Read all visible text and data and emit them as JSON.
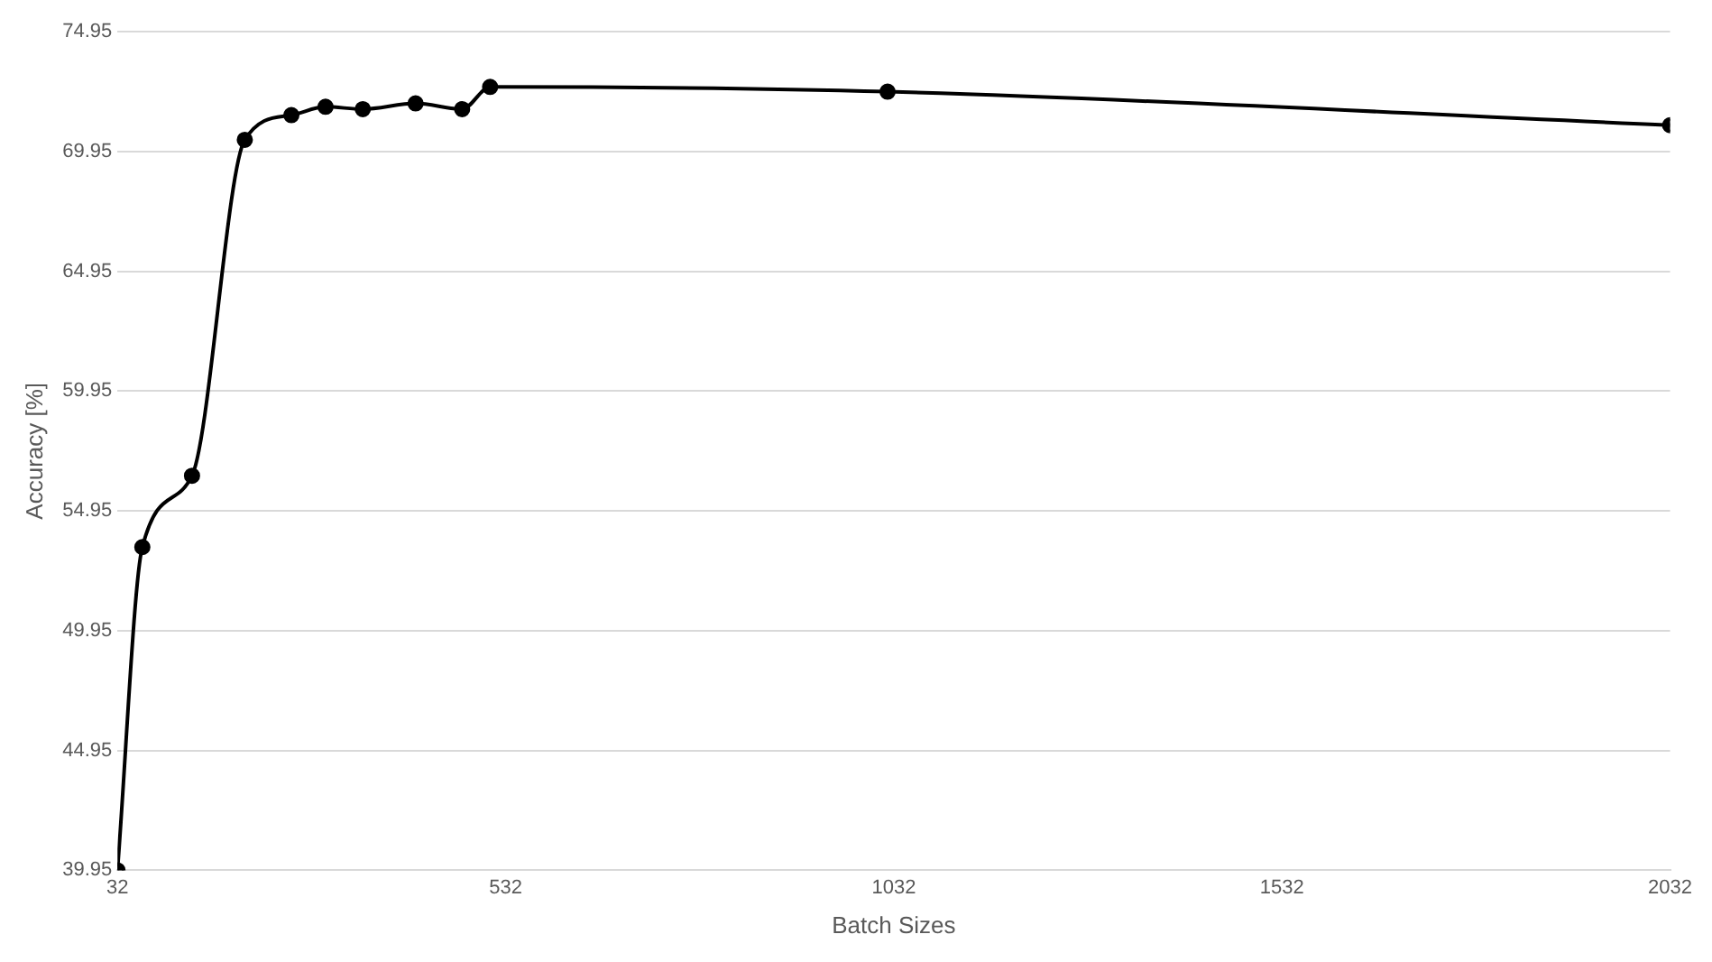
{
  "chart_data": {
    "type": "line",
    "x": [
      32,
      64,
      128,
      196,
      256,
      300,
      348,
      416,
      476,
      512,
      1024,
      2032
    ],
    "values": [
      39.95,
      53.44,
      56.42,
      70.44,
      71.47,
      71.82,
      71.72,
      71.96,
      71.72,
      72.65,
      72.45,
      71.05
    ],
    "color": "#000000",
    "xlabel": "Batch Sizes",
    "ylabel": "Accuracy [%]",
    "xlim": [
      32,
      2032
    ],
    "xticks": [
      32,
      532,
      1032,
      1532,
      2032
    ],
    "ylim": [
      39.95,
      74.95
    ],
    "yticks": [
      39.95,
      44.95,
      49.95,
      54.95,
      59.95,
      64.95,
      69.95,
      74.95
    ],
    "grid": "y",
    "legend": false,
    "marker": "circle",
    "line_style": "solid"
  }
}
